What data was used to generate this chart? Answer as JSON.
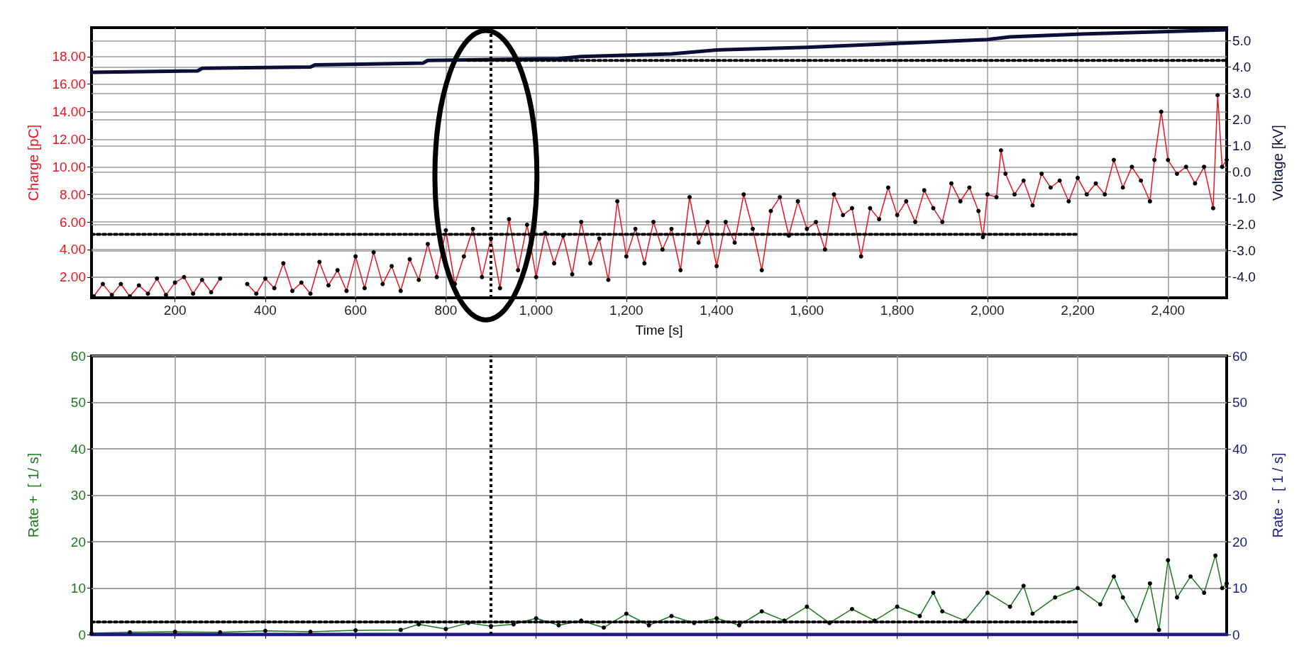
{
  "chart_data": [
    {
      "type": "line",
      "xlabel": "Time [s]",
      "ylabel": "Charge [pC]",
      "y2label": "Voltage [kV]",
      "xlim": [
        15,
        2530
      ],
      "xticks": [
        200,
        400,
        600,
        800,
        {
          "value": 1000,
          "label": "1,000"
        },
        {
          "value": 1200,
          "label": "1,200"
        },
        {
          "value": 1400,
          "label": "1,400"
        },
        {
          "value": 1600,
          "label": "1,600"
        },
        {
          "value": 1800,
          "label": "1,800"
        },
        {
          "value": 2000,
          "label": "2,000"
        },
        {
          "value": 2200,
          "label": "2,200"
        },
        {
          "value": 2400,
          "label": "2,400"
        }
      ],
      "ylim": [
        0.5,
        20.1
      ],
      "yticks": [
        {
          "value": 2,
          "label": "2.00"
        },
        {
          "value": 4,
          "label": "4.00"
        },
        {
          "value": 6,
          "label": "6.00"
        },
        {
          "value": 8,
          "label": "8.00"
        },
        {
          "value": 10,
          "label": "10.00"
        },
        {
          "value": 12,
          "label": "12.00"
        },
        {
          "value": 14,
          "label": "14.00"
        },
        {
          "value": 16,
          "label": "16.00"
        },
        {
          "value": 18,
          "label": "18.00"
        }
      ],
      "y2lim": [
        -4.8,
        5.5
      ],
      "y2ticks": [
        {
          "value": -4,
          "label": "-4.0"
        },
        {
          "value": -3,
          "label": "-3.0"
        },
        {
          "value": -2,
          "label": "-2.0"
        },
        {
          "value": -1,
          "label": "-1.0"
        },
        {
          "value": 0,
          "label": "0.0"
        },
        {
          "value": 1,
          "label": "1.0"
        },
        {
          "value": 2,
          "label": "2.0"
        },
        {
          "value": 3,
          "label": "3.0"
        },
        {
          "value": 4,
          "label": "4.0"
        },
        {
          "value": 5,
          "label": "5.0"
        }
      ],
      "grid": true,
      "line_style": "solid",
      "ref_lines": [
        {
          "axis": "x",
          "value": 900,
          "color": "#000000",
          "line_style": "dotted"
        }
      ],
      "series": [
        {
          "color": "#e8141e",
          "marker": "circle",
          "x": [
            20,
            40,
            60,
            80,
            100,
            120,
            140,
            160,
            180,
            200,
            220,
            240,
            260,
            280,
            300,
            320,
            360,
            380,
            400,
            420,
            440,
            460,
            480,
            500,
            520,
            540,
            560,
            580,
            600,
            620,
            640,
            660,
            680,
            700,
            720,
            740,
            760,
            780,
            800,
            820,
            840,
            860,
            880,
            900,
            920,
            940,
            960,
            980,
            1000,
            1020,
            1040,
            1060,
            1080,
            1100,
            1120,
            1140,
            1160,
            1180,
            1200,
            1220,
            1240,
            1260,
            1280,
            1300,
            1320,
            1340,
            1360,
            1380,
            1400,
            1420,
            1440,
            1460,
            1480,
            1500,
            1520,
            1540,
            1560,
            1580,
            1600,
            1620,
            1640,
            1660,
            1680,
            1700,
            1720,
            1740,
            1760,
            1780,
            1800,
            1820,
            1840,
            1860,
            1880,
            1900,
            1920,
            1940,
            1960,
            1980,
            1990,
            2000,
            2020,
            2030,
            2040,
            2060,
            2080,
            2100,
            2120,
            2140,
            2160,
            2180,
            2200,
            2220,
            2240,
            2260,
            2280,
            2300,
            2320,
            2340,
            2360,
            2370,
            2385,
            2400,
            2420,
            2440,
            2460,
            2480,
            2500,
            2510,
            2520,
            2530
          ],
          "values": [
            0.6,
            1.5,
            0.7,
            1.5,
            0.6,
            1.4,
            0.8,
            1.9,
            0.7,
            1.6,
            2.0,
            0.8,
            1.8,
            0.9,
            1.9,
            null,
            1.5,
            0.8,
            1.9,
            1.2,
            3.0,
            1.0,
            1.6,
            0.8,
            3.1,
            1.4,
            2.5,
            1.0,
            3.5,
            1.2,
            3.8,
            1.5,
            2.8,
            1.0,
            3.3,
            1.8,
            4.4,
            2.0,
            5.4,
            1.5,
            3.5,
            5.5,
            2.0,
            4.8,
            1.2,
            6.2,
            2.5,
            5.8,
            2.0,
            5.2,
            3.0,
            5.0,
            2.2,
            6.0,
            3.0,
            4.8,
            1.8,
            7.5,
            3.5,
            5.5,
            3.0,
            6.0,
            4.0,
            5.5,
            2.5,
            7.8,
            4.5,
            6.0,
            2.8,
            6.0,
            4.5,
            8.0,
            5.5,
            2.5,
            6.8,
            7.8,
            5.0,
            7.5,
            5.5,
            6.0,
            4.0,
            8.0,
            6.5,
            7.0,
            3.5,
            7.0,
            6.2,
            8.5,
            6.5,
            7.5,
            6.0,
            8.3,
            7.0,
            6.0,
            8.8,
            7.5,
            8.5,
            6.8,
            4.9,
            8.0,
            7.8,
            11.2,
            9.5,
            8.0,
            9.0,
            7.2,
            9.5,
            8.5,
            9.0,
            7.5,
            9.2,
            8.0,
            8.8,
            8.0,
            10.5,
            8.5,
            10.0,
            9.0,
            7.5,
            10.5,
            14.0,
            10.5,
            9.5,
            10.0,
            8.8,
            10.0,
            7.0,
            15.2,
            10.0,
            10.5
          ]
        },
        {
          "color": "#0d0d3a",
          "marker": "none",
          "axis": "y2",
          "x": [
            15,
            250,
            260,
            500,
            510,
            750,
            760,
            1050,
            1100,
            1300,
            1400,
            1600,
            1800,
            2000,
            2050,
            2200,
            2400,
            2530
          ],
          "values": [
            3.8,
            3.85,
            3.95,
            4.0,
            4.08,
            4.15,
            4.25,
            4.32,
            4.4,
            4.5,
            4.65,
            4.75,
            4.9,
            5.05,
            5.15,
            5.25,
            5.35,
            5.42
          ]
        },
        {
          "color": "#000000",
          "marker": "none",
          "line_style": "dotted",
          "x": [
            15,
            2200
          ],
          "values": [
            5.1,
            5.1
          ]
        },
        {
          "color": "#000000",
          "marker": "none",
          "line_style": "dotted",
          "axis": "y2",
          "x": [
            848,
            2530
          ],
          "values": [
            4.25,
            4.25
          ]
        }
      ]
    },
    {
      "type": "line",
      "ylabel": "Rate +  [ 1/ s]",
      "y2label": "Rate -  [ 1 / s]",
      "tick_labels": "y",
      "xlim": [
        15,
        2530
      ],
      "xticks": [
        200,
        400,
        600,
        800,
        1000,
        1200,
        1400,
        1600,
        1800,
        2000,
        2200,
        2400
      ],
      "ylim": [
        0,
        60
      ],
      "yticks": [
        0,
        10,
        20,
        30,
        40,
        50,
        60
      ],
      "y2lim": [
        0,
        60
      ],
      "y2ticks": [
        0,
        10,
        20,
        30,
        40,
        50,
        60
      ],
      "grid": true,
      "line_style": "solid",
      "ref_lines": [
        {
          "axis": "x",
          "value": 900,
          "color": "#000000",
          "line_style": "dotted"
        }
      ],
      "series": [
        {
          "color": "#1a7a1a",
          "marker": "circle",
          "x": [
            15,
            100,
            200,
            300,
            400,
            500,
            600,
            700,
            740,
            800,
            850,
            900,
            950,
            1000,
            1050,
            1100,
            1150,
            1200,
            1250,
            1300,
            1350,
            1400,
            1450,
            1500,
            1550,
            1600,
            1650,
            1700,
            1750,
            1800,
            1850,
            1880,
            1900,
            1950,
            2000,
            2050,
            2080,
            2100,
            2150,
            2200,
            2250,
            2280,
            2300,
            2330,
            2360,
            2380,
            2400,
            2420,
            2450,
            2480,
            2505,
            2520,
            2530
          ],
          "values": [
            0.3,
            0.5,
            0.6,
            0.5,
            0.8,
            0.6,
            0.9,
            1.0,
            2.2,
            1.2,
            2.5,
            1.8,
            2.2,
            3.5,
            2.0,
            3.0,
            1.5,
            4.5,
            2.0,
            4.0,
            2.5,
            3.5,
            2.0,
            5.0,
            3.0,
            6.0,
            2.5,
            5.5,
            3.0,
            6.0,
            4.0,
            9.0,
            5.0,
            3.0,
            9.0,
            6.0,
            10.5,
            4.5,
            8.0,
            10.0,
            6.5,
            12.5,
            8.0,
            3.0,
            11.0,
            1.0,
            16.0,
            8.0,
            12.5,
            9.0,
            17.0,
            10.0,
            11.0
          ]
        },
        {
          "color": "#1a1a80",
          "marker": "none",
          "axis": "y2",
          "x": [
            15,
            500,
            1000,
            1500,
            2000,
            2530
          ],
          "values": [
            0,
            0,
            0,
            0,
            0,
            0
          ]
        },
        {
          "color": "#000000",
          "marker": "none",
          "line_style": "dotted",
          "x": [
            15,
            2200
          ],
          "values": [
            2.7,
            2.7
          ]
        }
      ]
    }
  ]
}
